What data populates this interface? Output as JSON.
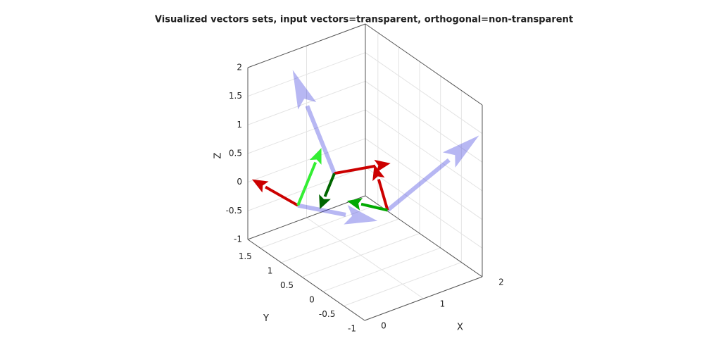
{
  "chart_data": {
    "type": "quiver3d",
    "title": "Visualized vectors sets, input vectors=transparent, orthogonal=non-transparent",
    "xlabel": "X",
    "ylabel": "Y",
    "zlabel": "Z",
    "xlim": [
      0,
      2
    ],
    "ylim": [
      -1,
      1.8
    ],
    "zlim": [
      -1,
      2
    ],
    "xticks": [
      0,
      1,
      2
    ],
    "yticks": [
      -1,
      -0.5,
      0,
      0.5,
      1,
      1.5
    ],
    "zticks": [
      -1,
      -0.5,
      0,
      0.5,
      1,
      1.5,
      2
    ],
    "grid": true,
    "vectors": [
      {
        "color": "#3333dd",
        "alpha": 0.35,
        "origin": [
          0,
          0.6,
          0.2
        ],
        "components": [
          1,
          -0.5,
          -0.4
        ]
      },
      {
        "color": "#3333dd",
        "alpha": 0.35,
        "origin": [
          0.55,
          0.5,
          0.6
        ],
        "components": [
          0,
          1,
          1.3
        ]
      },
      {
        "color": "#3333dd",
        "alpha": 0.35,
        "origin": [
          1.1,
          0,
          0
        ],
        "components": [
          1.2,
          -0.5,
          1.1
        ]
      },
      {
        "color": "#cc0000",
        "alpha": 1,
        "origin": [
          0,
          0.6,
          0.2
        ],
        "components": [
          0,
          1.1,
          -0.1
        ]
      },
      {
        "color": "#33ee33",
        "alpha": 1,
        "origin": [
          0,
          0.6,
          0.2
        ],
        "components": [
          0.4,
          0,
          0.85
        ]
      },
      {
        "color": "#cc0000",
        "alpha": 1,
        "origin": [
          0.55,
          0.5,
          0.6
        ],
        "components": [
          0.6,
          -0.5,
          0.2
        ]
      },
      {
        "color": "#006600",
        "alpha": 1,
        "origin": [
          0.55,
          0.5,
          0.6
        ],
        "components": [
          0,
          0.35,
          -0.8
        ]
      },
      {
        "color": "#cc0000",
        "alpha": 1,
        "origin": [
          1.1,
          0,
          0
        ],
        "components": [
          0.2,
          0.6,
          0.42
        ]
      },
      {
        "color": "#00aa00",
        "alpha": 1,
        "origin": [
          1.1,
          0,
          0
        ],
        "components": [
          -0.3,
          0.55,
          0
        ]
      }
    ]
  }
}
